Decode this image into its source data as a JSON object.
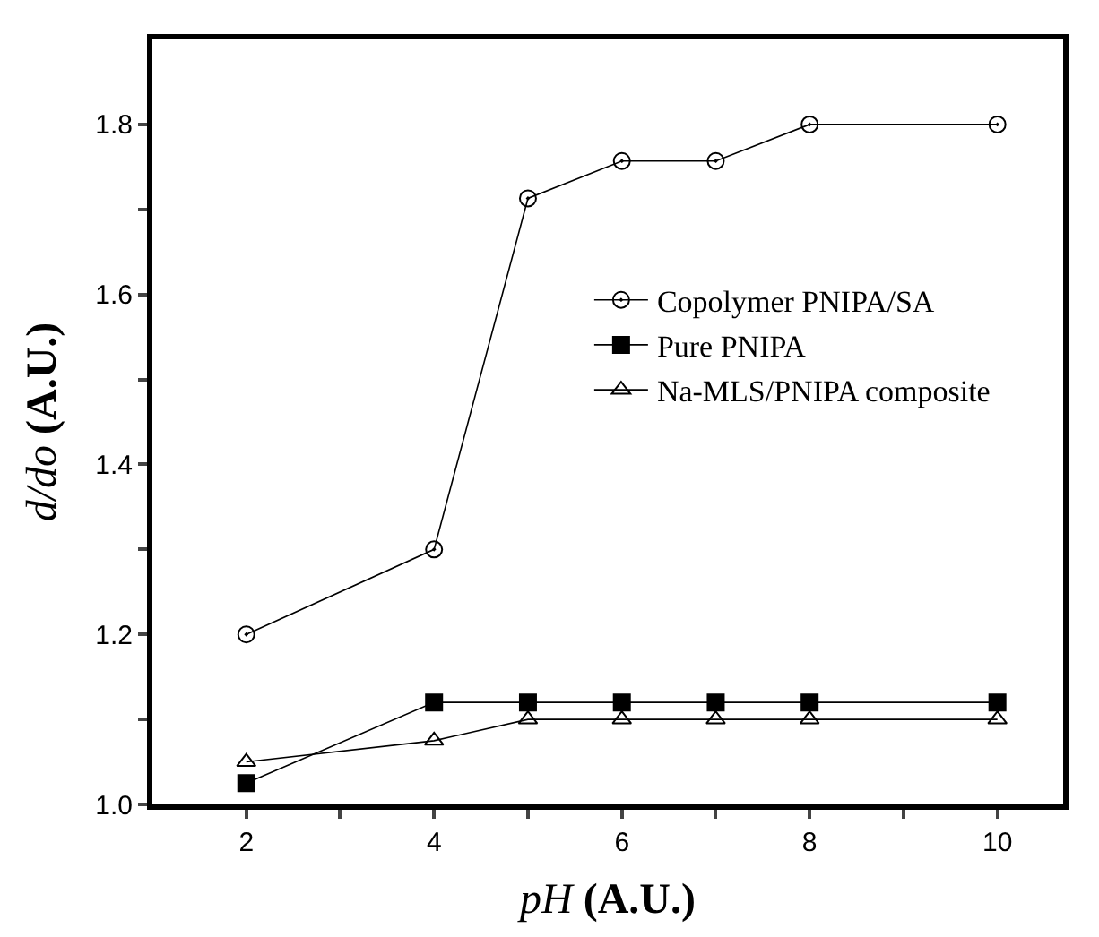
{
  "chart_data": {
    "type": "line",
    "xlabel": "pH (A.U.)",
    "ylabel": "d/do (A.U.)",
    "x": [
      2,
      4,
      5,
      6,
      7,
      8,
      10
    ],
    "series": [
      {
        "name": "Copolymer PNIPA/SA",
        "color": "#000000",
        "marker": "circle",
        "values": [
          1.2,
          1.3,
          1.713,
          1.757,
          1.757,
          1.8,
          1.8
        ]
      },
      {
        "name": "Pure PNIPA",
        "color": "#000000",
        "marker": "square",
        "values": [
          1.025,
          1.12,
          1.12,
          1.12,
          1.12,
          1.12,
          1.12
        ]
      },
      {
        "name": "Na-MLS/PNIPA composite",
        "color": "#000000",
        "marker": "triangle",
        "values": [
          1.05,
          1.075,
          1.1,
          1.1,
          1.1,
          1.1,
          1.1
        ]
      }
    ],
    "xlim": [
      1,
      10.7
    ],
    "ylim": [
      1.0,
      1.9
    ],
    "xticks": [
      2,
      {
        "value": 3,
        "label": null
      },
      4,
      {
        "value": 5,
        "label": null
      },
      6,
      {
        "value": 7,
        "label": null
      },
      8,
      {
        "value": 9,
        "label": null
      },
      10
    ],
    "yticks": [
      {
        "value": 1.0,
        "label": "1.0"
      },
      {
        "value": 1.1,
        "label": null
      },
      1.2,
      {
        "value": 1.3,
        "label": null
      },
      1.4,
      {
        "value": 1.5,
        "label": null
      },
      1.6,
      {
        "value": 1.7,
        "label": null
      },
      1.8
    ],
    "legend": "right",
    "line_style": "solid"
  }
}
